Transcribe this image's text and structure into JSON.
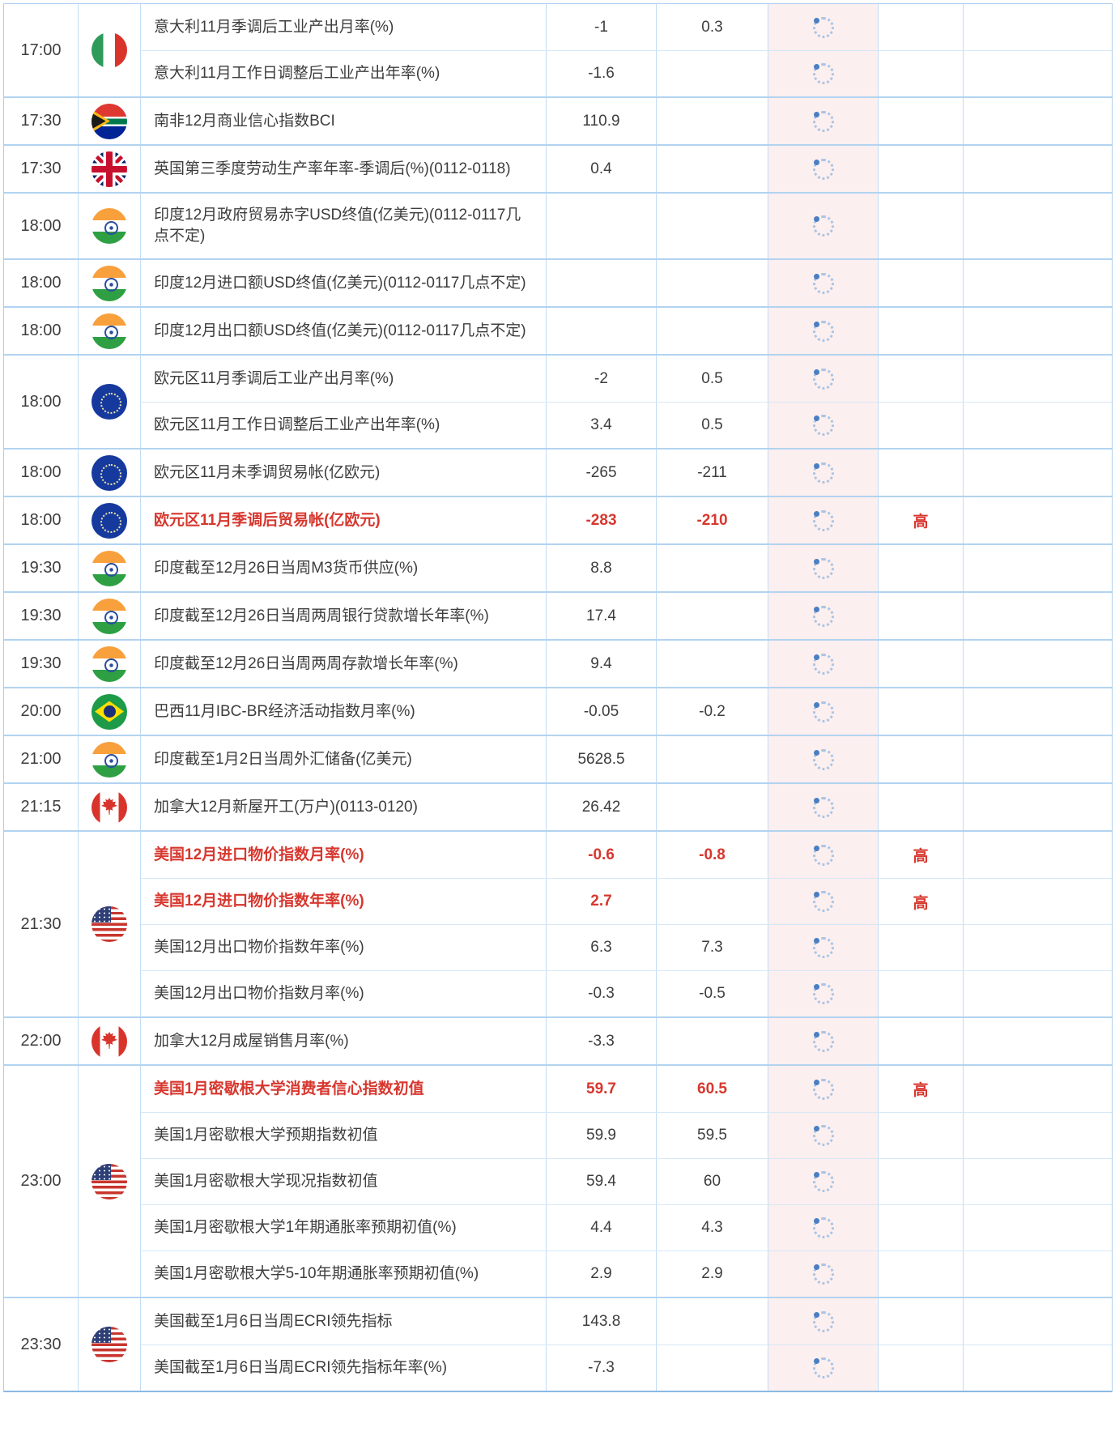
{
  "colors": {
    "highlight_red": "#d7372e",
    "actual_column_bg": "#fcefef",
    "border_blue": "#b2d3f0",
    "text": "#3d3d3d"
  },
  "icons": {
    "loading_spinner": "dotted-circle"
  },
  "importance_high_label": "高",
  "table": {
    "groups": [
      {
        "time": "17:00",
        "country": "italy",
        "rows": [
          {
            "event": "意大利11月季调后工业产出月率(%)",
            "previous": "-1",
            "forecast": "0.3",
            "importance": "",
            "highlight": false
          },
          {
            "event": "意大利11月工作日调整后工业产出年率(%)",
            "previous": "-1.6",
            "forecast": "",
            "importance": "",
            "highlight": false
          }
        ]
      },
      {
        "time": "17:30",
        "country": "south-africa",
        "rows": [
          {
            "event": "南非12月商业信心指数BCI",
            "previous": "110.9",
            "forecast": "",
            "importance": "",
            "highlight": false
          }
        ]
      },
      {
        "time": "17:30",
        "country": "uk",
        "rows": [
          {
            "event": "英国第三季度劳动生产率年率-季调后(%)(0112-0118)",
            "previous": "0.4",
            "forecast": "",
            "importance": "",
            "highlight": false
          }
        ]
      },
      {
        "time": "18:00",
        "country": "india",
        "rows": [
          {
            "event": "印度12月政府贸易赤字USD终值(亿美元)(0112-0117几点不定)",
            "previous": "",
            "forecast": "",
            "importance": "",
            "highlight": false
          }
        ]
      },
      {
        "time": "18:00",
        "country": "india",
        "rows": [
          {
            "event": "印度12月进口额USD终值(亿美元)(0112-0117几点不定)",
            "previous": "",
            "forecast": "",
            "importance": "",
            "highlight": false
          }
        ]
      },
      {
        "time": "18:00",
        "country": "india",
        "rows": [
          {
            "event": "印度12月出口额USD终值(亿美元)(0112-0117几点不定)",
            "previous": "",
            "forecast": "",
            "importance": "",
            "highlight": false
          }
        ]
      },
      {
        "time": "18:00",
        "country": "eu",
        "rows": [
          {
            "event": "欧元区11月季调后工业产出月率(%)",
            "previous": "-2",
            "forecast": "0.5",
            "importance": "",
            "highlight": false
          },
          {
            "event": "欧元区11月工作日调整后工业产出年率(%)",
            "previous": "3.4",
            "forecast": "0.5",
            "importance": "",
            "highlight": false
          }
        ]
      },
      {
        "time": "18:00",
        "country": "eu",
        "rows": [
          {
            "event": "欧元区11月未季调贸易帐(亿欧元)",
            "previous": "-265",
            "forecast": "-211",
            "importance": "",
            "highlight": false
          }
        ]
      },
      {
        "time": "18:00",
        "country": "eu",
        "rows": [
          {
            "event": "欧元区11月季调后贸易帐(亿欧元)",
            "previous": "-283",
            "forecast": "-210",
            "importance": "高",
            "highlight": true
          }
        ]
      },
      {
        "time": "19:30",
        "country": "india",
        "rows": [
          {
            "event": "印度截至12月26日当周M3货币供应(%)",
            "previous": "8.8",
            "forecast": "",
            "importance": "",
            "highlight": false
          }
        ]
      },
      {
        "time": "19:30",
        "country": "india",
        "rows": [
          {
            "event": "印度截至12月26日当周两周银行贷款增长年率(%)",
            "previous": "17.4",
            "forecast": "",
            "importance": "",
            "highlight": false
          }
        ]
      },
      {
        "time": "19:30",
        "country": "india",
        "rows": [
          {
            "event": "印度截至12月26日当周两周存款增长年率(%)",
            "previous": "9.4",
            "forecast": "",
            "importance": "",
            "highlight": false
          }
        ]
      },
      {
        "time": "20:00",
        "country": "brazil",
        "rows": [
          {
            "event": "巴西11月IBC-BR经济活动指数月率(%)",
            "previous": "-0.05",
            "forecast": "-0.2",
            "importance": "",
            "highlight": false
          }
        ]
      },
      {
        "time": "21:00",
        "country": "india",
        "rows": [
          {
            "event": "印度截至1月2日当周外汇储备(亿美元)",
            "previous": "5628.5",
            "forecast": "",
            "importance": "",
            "highlight": false
          }
        ]
      },
      {
        "time": "21:15",
        "country": "canada",
        "rows": [
          {
            "event": "加拿大12月新屋开工(万户)(0113-0120)",
            "previous": "26.42",
            "forecast": "",
            "importance": "",
            "highlight": false
          }
        ]
      },
      {
        "time": "21:30",
        "country": "usa",
        "rows": [
          {
            "event": "美国12月进口物价指数月率(%)",
            "previous": "-0.6",
            "forecast": "-0.8",
            "importance": "高",
            "highlight": true
          },
          {
            "event": "美国12月进口物价指数年率(%)",
            "previous": "2.7",
            "forecast": "",
            "importance": "高",
            "highlight": true
          },
          {
            "event": "美国12月出口物价指数年率(%)",
            "previous": "6.3",
            "forecast": "7.3",
            "importance": "",
            "highlight": false
          },
          {
            "event": "美国12月出口物价指数月率(%)",
            "previous": "-0.3",
            "forecast": "-0.5",
            "importance": "",
            "highlight": false
          }
        ]
      },
      {
        "time": "22:00",
        "country": "canada",
        "rows": [
          {
            "event": "加拿大12月成屋销售月率(%)",
            "previous": "-3.3",
            "forecast": "",
            "importance": "",
            "highlight": false
          }
        ]
      },
      {
        "time": "23:00",
        "country": "usa",
        "rows": [
          {
            "event": "美国1月密歇根大学消费者信心指数初值",
            "previous": "59.7",
            "forecast": "60.5",
            "importance": "高",
            "highlight": true
          },
          {
            "event": "美国1月密歇根大学预期指数初值",
            "previous": "59.9",
            "forecast": "59.5",
            "importance": "",
            "highlight": false
          },
          {
            "event": "美国1月密歇根大学现况指数初值",
            "previous": "59.4",
            "forecast": "60",
            "importance": "",
            "highlight": false
          },
          {
            "event": "美国1月密歇根大学1年期通胀率预期初值(%)",
            "previous": "4.4",
            "forecast": "4.3",
            "importance": "",
            "highlight": false
          },
          {
            "event": "美国1月密歇根大学5-10年期通胀率预期初值(%)",
            "previous": "2.9",
            "forecast": "2.9",
            "importance": "",
            "highlight": false
          }
        ]
      },
      {
        "time": "23:30",
        "country": "usa",
        "rows": [
          {
            "event": "美国截至1月6日当周ECRI领先指标",
            "previous": "143.8",
            "forecast": "",
            "importance": "",
            "highlight": false
          },
          {
            "event": "美国截至1月6日当周ECRI领先指标年率(%)",
            "previous": "-7.3",
            "forecast": "",
            "importance": "",
            "highlight": false
          }
        ]
      }
    ]
  }
}
